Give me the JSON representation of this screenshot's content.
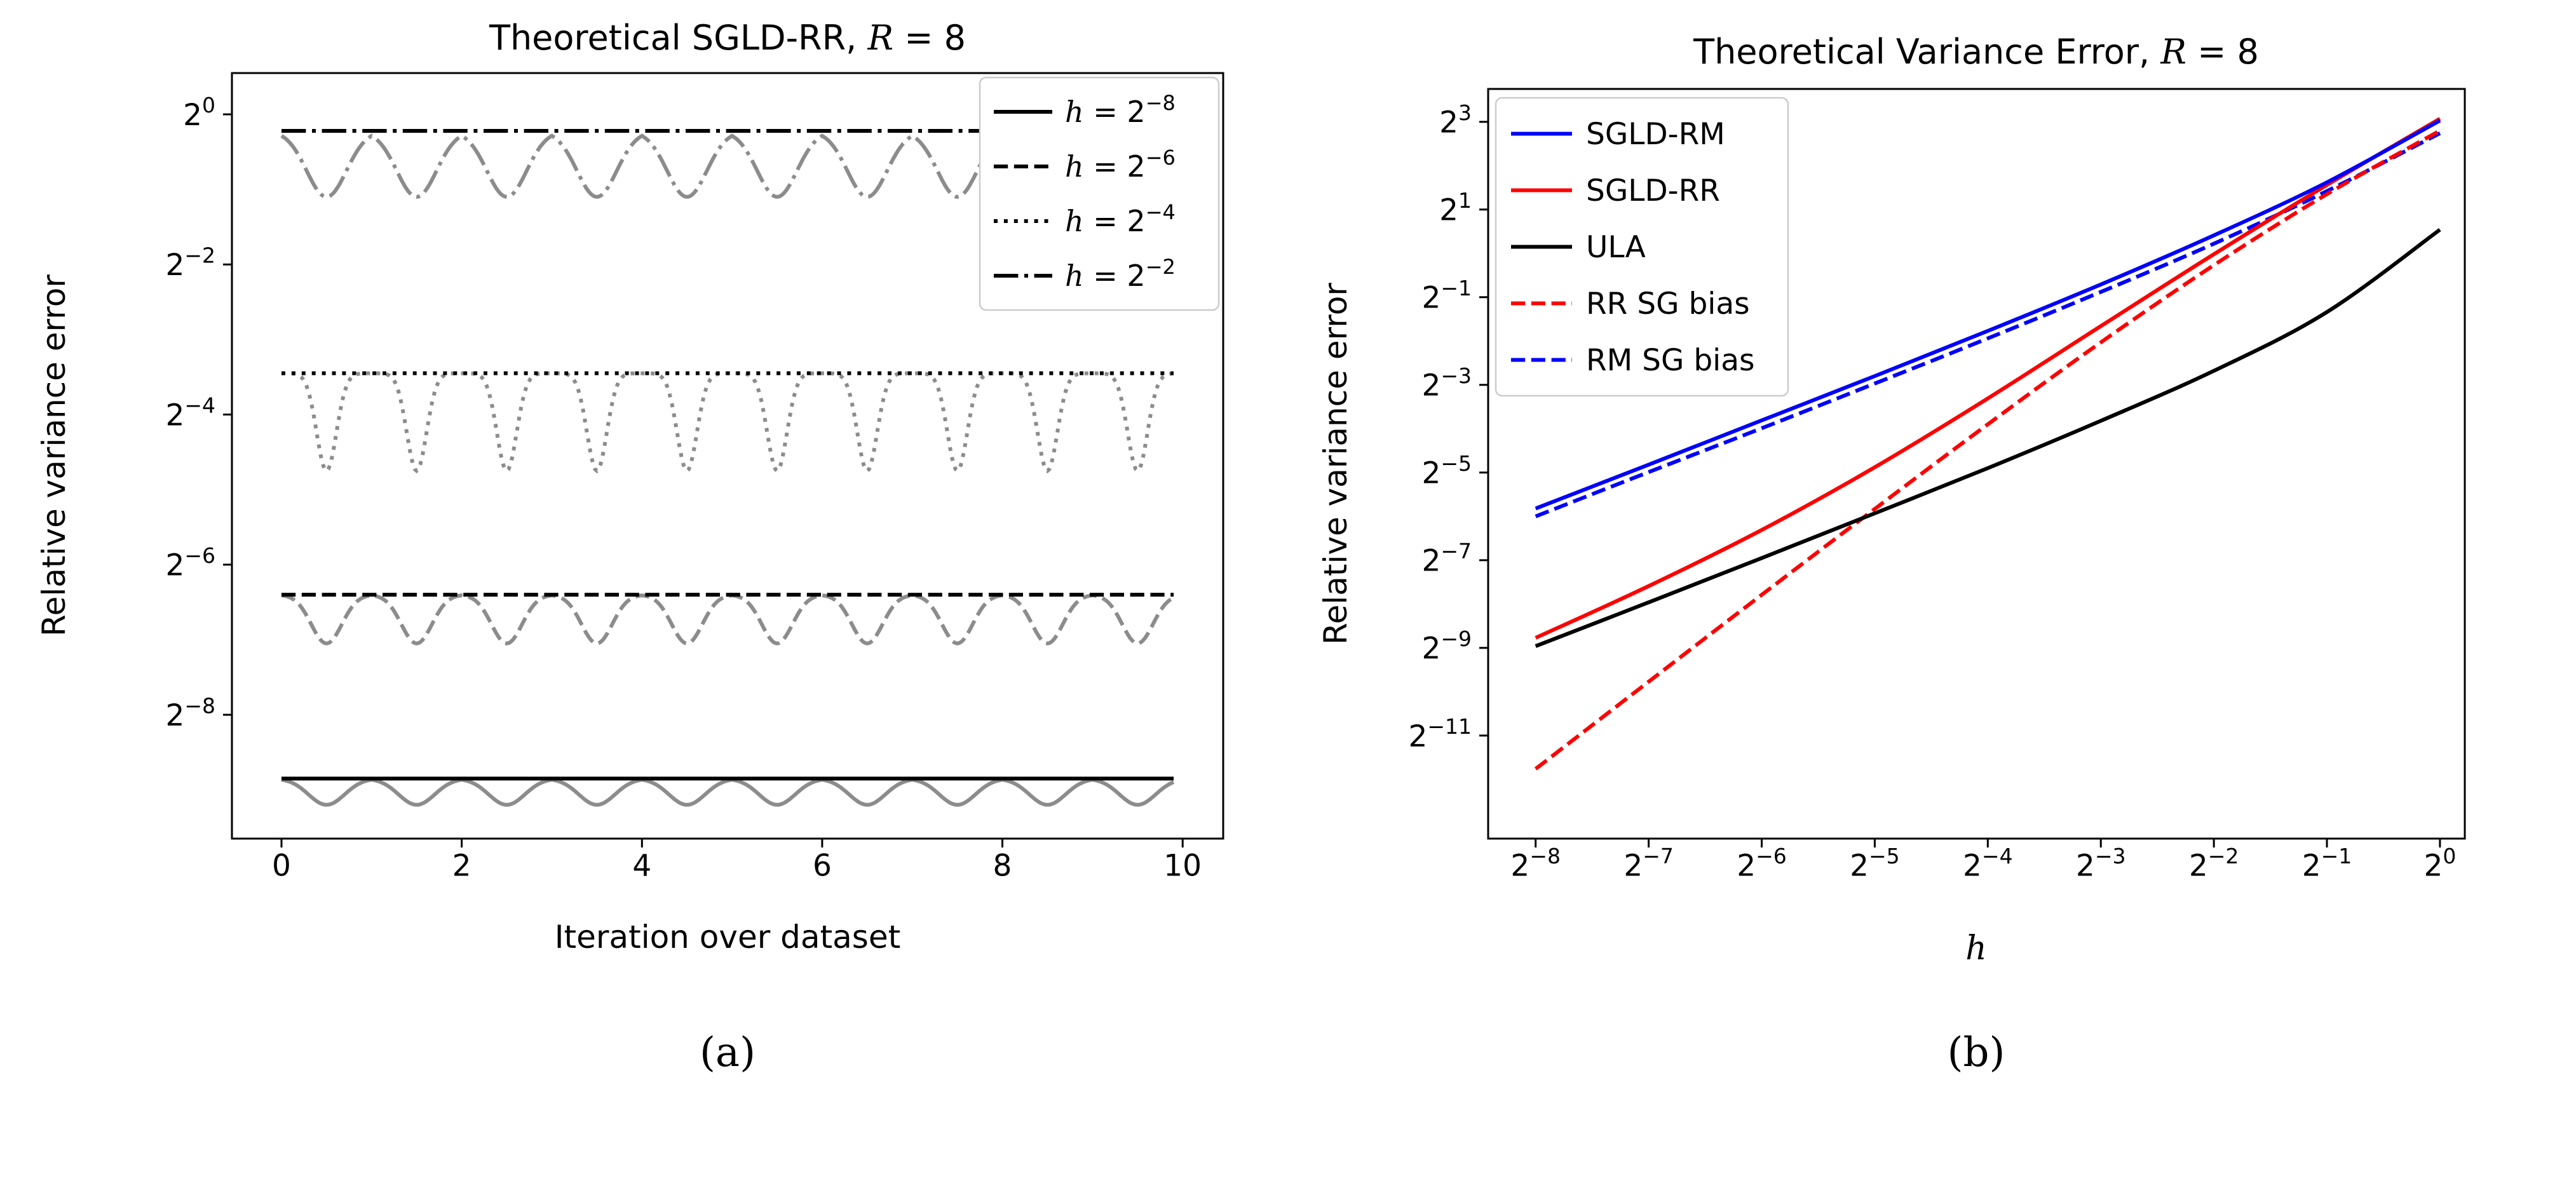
{
  "figure": {
    "background": "#ffffff",
    "captions": {
      "a": "(a)",
      "b": "(b)"
    }
  },
  "chart_data": [
    {
      "id": "a",
      "type": "line",
      "caption": "(a)",
      "title": "Theoretical SGLD-RR, $R$ = 8",
      "xlabel": "Iteration over dataset",
      "ylabel": "Relative variance error",
      "xlim": [
        -0.55,
        10.45
      ],
      "ylim_log2": [
        -9.65,
        0.55
      ],
      "grid": false,
      "legend_position": "top-right",
      "x_ticks": [
        {
          "v": 0,
          "label": "0"
        },
        {
          "v": 2,
          "label": "2"
        },
        {
          "v": 4,
          "label": "4"
        },
        {
          "v": 6,
          "label": "6"
        },
        {
          "v": 8,
          "label": "8"
        },
        {
          "v": 10,
          "label": "10"
        }
      ],
      "y_ticks": [
        {
          "v": 0,
          "label": "2^{0}"
        },
        {
          "v": -2,
          "label": "2^{−2}"
        },
        {
          "v": -4,
          "label": "2^{−4}"
        },
        {
          "v": -6,
          "label": "2^{−6}"
        },
        {
          "v": -8,
          "label": "2^{−8}"
        }
      ],
      "series": [
        {
          "name": "$h$ = 2^{−8}",
          "style": "solid",
          "line_color": "#000000",
          "osc_color": "#8c8c8c",
          "line_level_log2": -8.85,
          "dip_depth_log2": 0.35,
          "dip_width": 0.2,
          "x_start": 0,
          "x_end": 9.9
        },
        {
          "name": "$h$ = 2^{−6}",
          "style": "dashed",
          "line_color": "#000000",
          "osc_color": "#8c8c8c",
          "line_level_log2": -6.4,
          "dip_depth_log2": 0.65,
          "dip_width": 0.17,
          "x_start": 0,
          "x_end": 9.9
        },
        {
          "name": "$h$ = 2^{−4}",
          "style": "dotted",
          "line_color": "#000000",
          "osc_color": "#8c8c8c",
          "line_level_log2": -3.45,
          "dip_depth_log2": 1.3,
          "dip_width": 0.11,
          "x_start": 0,
          "x_end": 9.9
        },
        {
          "name": "$h$ = 2^{−2}",
          "style": "dashdot",
          "line_color": "#000000",
          "osc_color": "#8c8c8c",
          "line_level_log2": -0.22,
          "dip_depth_log2": 0.88,
          "dip_width": 0.22,
          "x_start": 0,
          "x_end": 9.9
        }
      ]
    },
    {
      "id": "b",
      "type": "line",
      "caption": "(b)",
      "title": "Theoretical Variance Error, $R$ = 8",
      "xlabel": "$h$",
      "ylabel": "Relative variance error",
      "xlim": [
        -8.42,
        0.22
      ],
      "ylim_log2": [
        -13.35,
        3.75
      ],
      "grid": false,
      "legend_position": "top-left",
      "x_ticks": [
        {
          "v": -8,
          "label": "2^{−8}"
        },
        {
          "v": -7,
          "label": "2^{−7}"
        },
        {
          "v": -6,
          "label": "2^{−6}"
        },
        {
          "v": -5,
          "label": "2^{−5}"
        },
        {
          "v": -4,
          "label": "2^{−4}"
        },
        {
          "v": -3,
          "label": "2^{−3}"
        },
        {
          "v": -2,
          "label": "2^{−2}"
        },
        {
          "v": -1,
          "label": "2^{−1}"
        },
        {
          "v": 0,
          "label": "2^{0}"
        }
      ],
      "y_ticks": [
        {
          "v": 3,
          "label": "2^{3}"
        },
        {
          "v": 1,
          "label": "2^{1}"
        },
        {
          "v": -1,
          "label": "2^{−1}"
        },
        {
          "v": -3,
          "label": "2^{−3}"
        },
        {
          "v": -5,
          "label": "2^{−5}"
        },
        {
          "v": -7,
          "label": "2^{−7}"
        },
        {
          "v": -9,
          "label": "2^{−9}"
        },
        {
          "v": -11,
          "label": "2^{−11}"
        }
      ],
      "draw_order": [
        4,
        3,
        2,
        1,
        0
      ],
      "series": [
        {
          "name": "SGLD-RM",
          "color": "#0000ff",
          "style": "solid",
          "x_log2": [
            -8,
            -7,
            -6,
            -5,
            -4,
            -3,
            -2,
            -1,
            0
          ],
          "y_log2": [
            -5.82,
            -4.82,
            -3.81,
            -2.8,
            -1.77,
            -0.71,
            0.41,
            1.62,
            3.03
          ]
        },
        {
          "name": "SGLD-RR",
          "color": "#ff0000",
          "style": "solid",
          "x_log2": [
            -8,
            -7,
            -6,
            -5,
            -4,
            -3,
            -2,
            -1,
            0
          ],
          "y_log2": [
            -8.77,
            -7.59,
            -6.31,
            -4.88,
            -3.31,
            -1.66,
            -0.02,
            1.56,
            3.07
          ]
        },
        {
          "name": "ULA",
          "color": "#000000",
          "style": "solid",
          "x_log2": [
            -8,
            -7,
            -6,
            -5,
            -4,
            -3,
            -2,
            -1,
            0
          ],
          "y_log2": [
            -8.96,
            -7.96,
            -6.95,
            -5.93,
            -4.9,
            -3.82,
            -2.68,
            -1.34,
            0.54
          ]
        },
        {
          "name": "RR SG bias",
          "color": "#ff0000",
          "style": "dashed",
          "x_log2": [
            -8,
            -7,
            -6,
            -5,
            -4,
            -3,
            -2,
            -1,
            0
          ],
          "y_log2": [
            -11.76,
            -9.77,
            -7.79,
            -5.83,
            -3.9,
            -2.03,
            -0.27,
            1.35,
            2.8
          ]
        },
        {
          "name": "RM SG bias",
          "color": "#0000ff",
          "style": "dashed",
          "x_log2": [
            -8,
            -7,
            -6,
            -5,
            -4,
            -3,
            -2,
            -1,
            0
          ],
          "y_log2": [
            -6.0,
            -4.99,
            -3.99,
            -2.97,
            -1.94,
            -0.88,
            0.22,
            1.42,
            2.74
          ]
        }
      ]
    }
  ]
}
